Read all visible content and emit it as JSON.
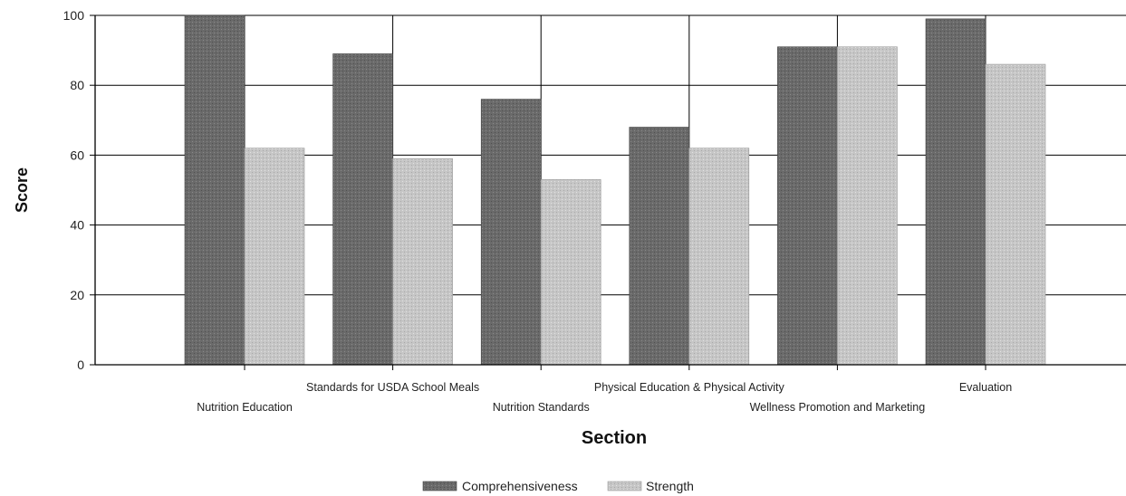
{
  "chart_data": {
    "type": "bar",
    "title": "",
    "xlabel": "Section",
    "ylabel": "Score",
    "ylim": [
      0,
      100
    ],
    "yticks": [
      0,
      20,
      40,
      60,
      80,
      100
    ],
    "grid": true,
    "legend_position": "bottom",
    "categories": [
      "Nutrition Education",
      "Standards for USDA School Meals",
      "Nutrition Standards",
      "Physical Education & Physical Activity",
      "Wellness Promotion and Marketing",
      "Evaluation"
    ],
    "series": [
      {
        "name": "Comprehensiveness",
        "color": "#6e6e6e",
        "values": [
          100,
          89,
          76,
          68,
          91,
          99
        ]
      },
      {
        "name": "Strength",
        "color": "#c8c8c8",
        "values": [
          62,
          59,
          53,
          62,
          91,
          86
        ]
      }
    ]
  }
}
